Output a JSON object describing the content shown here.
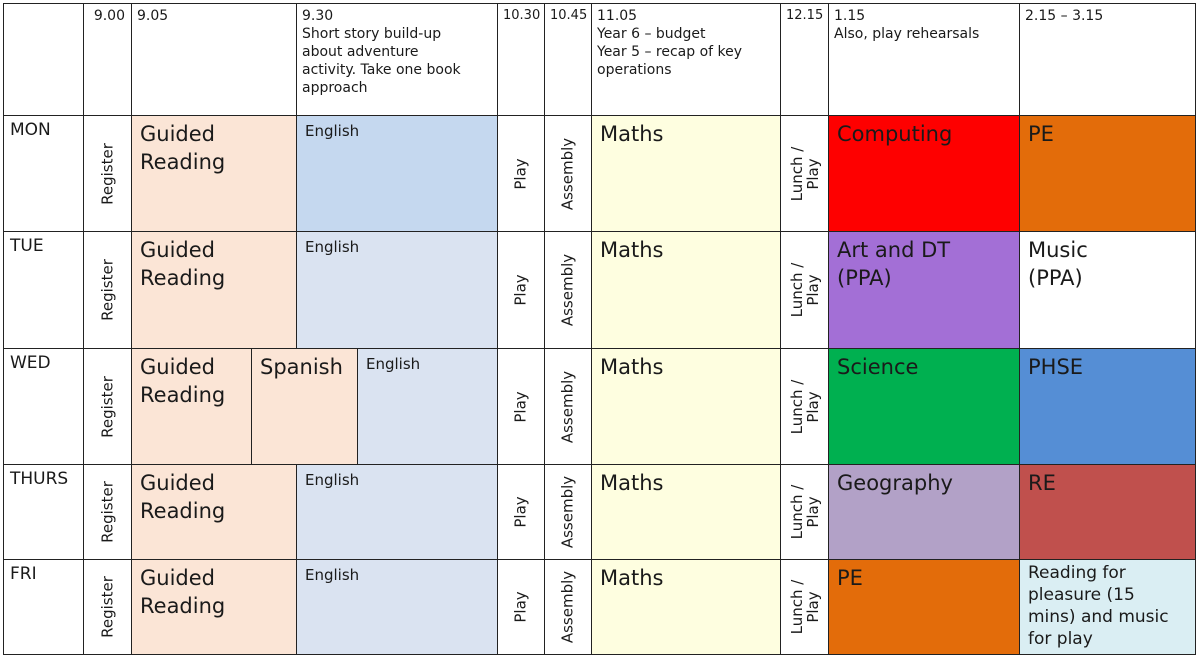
{
  "header": {
    "c0": "",
    "c1": "9.00",
    "c2": "9.05",
    "c3": [
      "9.30",
      "Short story build-up",
      "about adventure",
      "activity. Take one book",
      "approach"
    ],
    "c4": "10.30",
    "c5": "10.45",
    "c6": [
      "11.05",
      "Year 6 – budget",
      "Year 5 – recap of key",
      "operations"
    ],
    "c7": "12.15",
    "c8": [
      "1.15",
      "Also, play rehearsals"
    ],
    "c9": "2.15 – 3.15"
  },
  "rows": [
    {
      "day": "MON",
      "register": "Register",
      "guided1": "Guided",
      "guided2": "Reading",
      "english": "English",
      "play": "Play",
      "assembly": "Assembly",
      "maths": "Maths",
      "lunch": "Lunch /",
      "lunch_play": "Play",
      "s1": "Computing",
      "s2": "PE"
    },
    {
      "day": "TUE",
      "register": "Register",
      "guided1": "Guided",
      "guided2": "Reading",
      "english": "English",
      "play": "Play",
      "assembly": "Assembly",
      "maths": "Maths",
      "lunch": "Lunch /",
      "lunch_play": "Play",
      "s1a": "Art and DT",
      "s1b": "(PPA)",
      "s2a": "Music",
      "s2b": "(PPA)"
    },
    {
      "day": "WED",
      "register": "Register",
      "guided1": "Guided",
      "guided2": "Reading",
      "spanish": "Spanish",
      "english": "English",
      "play": "Play",
      "assembly": "Assembly",
      "maths": "Maths",
      "lunch": "Lunch /",
      "lunch_play": "Play",
      "s1": "Science",
      "s2": "PHSE"
    },
    {
      "day": "THURS",
      "register": "Register",
      "guided1": "Guided",
      "guided2": "Reading",
      "english": "English",
      "play": "Play",
      "assembly": "Assembly",
      "maths": "Maths",
      "lunch": "Lunch /",
      "lunch_play": "Play",
      "s1": "Geography",
      "s2": "RE"
    },
    {
      "day": "FRI",
      "register": "Register",
      "guided1": "Guided",
      "guided2": "Reading",
      "english": "English",
      "play": "Play",
      "assembly": "Assembly",
      "maths": "Maths",
      "lunch": "Lunch /",
      "lunch_play": "Play",
      "s1": "PE",
      "s2": [
        "Reading for",
        "pleasure (15",
        "mins) and music",
        "for play"
      ]
    }
  ],
  "colors": {
    "guided": "#fbe5d6",
    "english_mon": "#c5d8ef",
    "english": "#dae3f1",
    "maths": "#fefee0",
    "computing": "#fe0000",
    "pe": "#e36c0a",
    "art": "#a36fd6",
    "music": "#ffffff",
    "science": "#00b050",
    "phse": "#558ed5",
    "geography": "#b2a1c7",
    "re": "#c0504d",
    "reading": "#daeef3"
  }
}
